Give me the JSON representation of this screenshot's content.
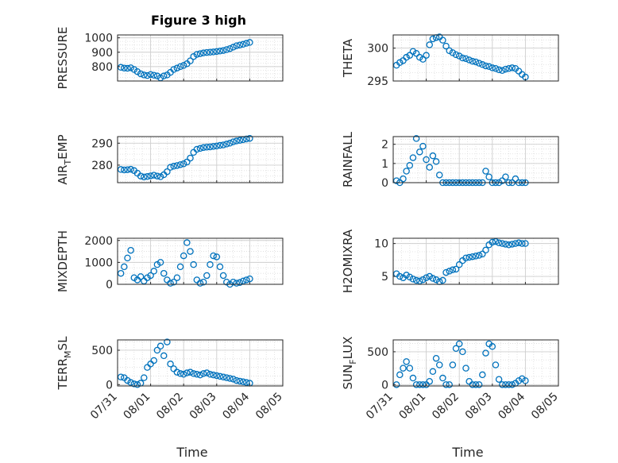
{
  "figure": {
    "title": "Figure 3 high",
    "marker_color": "#0072bd",
    "axis_color": "#262626",
    "grid_color": "#dcdcdc"
  },
  "chart_data": [
    {
      "type": "scatter",
      "id": "pressure",
      "ylabel_parts": [
        "PRESSURE"
      ],
      "ylim": [
        700,
        1020
      ],
      "yticks": [
        800,
        900,
        1000
      ],
      "ytick_labels": [
        "800",
        "900",
        "1000"
      ],
      "xlim": [
        "07/31",
        "08/05"
      ],
      "xticks": [],
      "xtick_labels": [],
      "x_days": [
        0.1,
        0.2,
        0.3,
        0.4,
        0.5,
        0.6,
        0.7,
        0.8,
        0.9,
        1.0,
        1.1,
        1.2,
        1.3,
        1.4,
        1.5,
        1.6,
        1.7,
        1.8,
        1.9,
        2.0,
        2.1,
        2.2,
        2.3,
        2.4,
        2.5,
        2.6,
        2.7,
        2.8,
        2.9,
        3.0,
        3.1,
        3.2,
        3.3,
        3.4,
        3.5,
        3.6,
        3.7,
        3.8,
        3.9,
        4.0
      ],
      "values": [
        795,
        790,
        788,
        792,
        780,
        765,
        750,
        742,
        738,
        745,
        740,
        735,
        722,
        735,
        742,
        760,
        780,
        790,
        800,
        808,
        820,
        840,
        870,
        885,
        890,
        895,
        898,
        900,
        902,
        905,
        908,
        912,
        918,
        925,
        935,
        945,
        950,
        955,
        962,
        968
      ]
    },
    {
      "type": "scatter",
      "id": "theta",
      "ylabel_parts": [
        "THETA"
      ],
      "ylim": [
        295,
        302
      ],
      "yticks": [
        295,
        300
      ],
      "ytick_labels": [
        "295",
        "300"
      ],
      "xlim": [
        "07/31",
        "08/05"
      ],
      "xticks": [],
      "xtick_labels": [],
      "x_days": [
        0.1,
        0.2,
        0.3,
        0.4,
        0.5,
        0.6,
        0.7,
        0.8,
        0.9,
        1.0,
        1.1,
        1.2,
        1.3,
        1.4,
        1.5,
        1.6,
        1.7,
        1.8,
        1.9,
        2.0,
        2.1,
        2.2,
        2.3,
        2.4,
        2.5,
        2.6,
        2.7,
        2.8,
        2.9,
        3.0,
        3.1,
        3.2,
        3.3,
        3.4,
        3.5,
        3.6,
        3.7,
        3.8,
        3.9,
        4.0
      ],
      "values": [
        297.4,
        297.8,
        298.1,
        298.6,
        298.9,
        299.5,
        299.2,
        298.6,
        298.3,
        298.9,
        300.5,
        301.4,
        301.6,
        301.7,
        301.2,
        300.3,
        299.6,
        299.3,
        299.0,
        298.8,
        298.5,
        298.4,
        298.2,
        298.0,
        297.9,
        297.7,
        297.5,
        297.3,
        297.2,
        297.0,
        296.9,
        296.7,
        296.6,
        296.8,
        296.9,
        297.0,
        296.9,
        296.5,
        296.0,
        295.6
      ]
    },
    {
      "type": "scatter",
      "id": "air-temp",
      "ylabel_parts": [
        "AIR",
        "T",
        "EMP"
      ],
      "ylim": [
        272,
        293
      ],
      "yticks": [
        280,
        290
      ],
      "ytick_labels": [
        "280",
        "290"
      ],
      "xlim": [
        "07/31",
        "08/05"
      ],
      "xticks": [],
      "xtick_labels": [],
      "x_days": [
        0.1,
        0.2,
        0.3,
        0.4,
        0.5,
        0.6,
        0.7,
        0.8,
        0.9,
        1.0,
        1.1,
        1.2,
        1.3,
        1.4,
        1.5,
        1.6,
        1.7,
        1.8,
        1.9,
        2.0,
        2.1,
        2.2,
        2.3,
        2.4,
        2.5,
        2.6,
        2.7,
        2.8,
        2.9,
        3.0,
        3.1,
        3.2,
        3.3,
        3.4,
        3.5,
        3.6,
        3.7,
        3.8,
        3.9,
        4.0
      ],
      "values": [
        278.0,
        277.8,
        277.9,
        278.1,
        277.5,
        276.3,
        275.0,
        274.6,
        274.8,
        275.1,
        275.4,
        275.0,
        274.7,
        275.6,
        277.0,
        279.0,
        279.5,
        279.8,
        280.2,
        280.6,
        281.4,
        283.2,
        285.8,
        287.2,
        287.6,
        288.0,
        288.2,
        288.3,
        288.5,
        288.7,
        289.0,
        289.2,
        289.6,
        290.0,
        290.6,
        291.0,
        291.3,
        291.6,
        291.9,
        292.2
      ]
    },
    {
      "type": "scatter",
      "id": "rainfall",
      "ylabel_parts": [
        "RAINFALL"
      ],
      "ylim": [
        0,
        2.4
      ],
      "yticks": [
        0,
        1,
        2
      ],
      "ytick_labels": [
        "0",
        "1",
        "2"
      ],
      "xlim": [
        "07/31",
        "08/05"
      ],
      "xticks": [],
      "xtick_labels": [],
      "x_days": [
        0.1,
        0.2,
        0.3,
        0.4,
        0.5,
        0.6,
        0.7,
        0.8,
        0.9,
        1.0,
        1.1,
        1.2,
        1.3,
        1.4,
        1.5,
        1.6,
        1.7,
        1.8,
        1.9,
        2.0,
        2.1,
        2.2,
        2.3,
        2.4,
        2.5,
        2.6,
        2.7,
        2.8,
        2.9,
        3.0,
        3.1,
        3.2,
        3.3,
        3.4,
        3.5,
        3.6,
        3.7,
        3.8,
        3.9,
        4.0
      ],
      "values": [
        0.1,
        0.0,
        0.2,
        0.6,
        0.9,
        1.3,
        2.3,
        1.6,
        1.9,
        1.2,
        0.8,
        1.4,
        1.1,
        0.4,
        0.0,
        0.0,
        0.0,
        0.0,
        0.0,
        0.0,
        0.0,
        0.0,
        0.0,
        0.0,
        0.0,
        0.0,
        0.0,
        0.6,
        0.3,
        0.0,
        0.0,
        0.0,
        0.1,
        0.3,
        0.0,
        0.0,
        0.2,
        0.0,
        0.0,
        0.0
      ]
    },
    {
      "type": "scatter",
      "id": "mixdepth",
      "ylabel_parts": [
        "MIXDEPTH"
      ],
      "ylim": [
        0,
        2100
      ],
      "yticks": [
        0,
        1000,
        2000
      ],
      "ytick_labels": [
        "0",
        "1000",
        "2000"
      ],
      "xlim": [
        "07/31",
        "08/05"
      ],
      "xticks": [],
      "xtick_labels": [],
      "x_days": [
        0.1,
        0.2,
        0.3,
        0.4,
        0.5,
        0.6,
        0.7,
        0.8,
        0.9,
        1.0,
        1.1,
        1.2,
        1.3,
        1.4,
        1.5,
        1.6,
        1.7,
        1.8,
        1.9,
        2.0,
        2.1,
        2.2,
        2.3,
        2.4,
        2.5,
        2.6,
        2.7,
        2.8,
        2.9,
        3.0,
        3.1,
        3.2,
        3.3,
        3.4,
        3.5,
        3.6,
        3.7,
        3.8,
        3.9,
        4.0
      ],
      "values": [
        500,
        800,
        1200,
        1550,
        300,
        200,
        350,
        150,
        300,
        400,
        600,
        900,
        1000,
        500,
        200,
        50,
        100,
        300,
        800,
        1300,
        1900,
        1500,
        900,
        200,
        50,
        100,
        400,
        900,
        1300,
        1250,
        800,
        400,
        100,
        0,
        100,
        50,
        80,
        150,
        200,
        250
      ]
    },
    {
      "type": "scatter",
      "id": "h2omixra",
      "ylabel_parts": [
        "H2OMIXRA"
      ],
      "ylim": [
        3.8,
        10.8
      ],
      "yticks": [
        5,
        10
      ],
      "ytick_labels": [
        "5",
        "10"
      ],
      "xlim": [
        "07/31",
        "08/05"
      ],
      "xticks": [],
      "xtick_labels": [],
      "x_days": [
        0.1,
        0.2,
        0.3,
        0.4,
        0.5,
        0.6,
        0.7,
        0.8,
        0.9,
        1.0,
        1.1,
        1.2,
        1.3,
        1.4,
        1.5,
        1.6,
        1.7,
        1.8,
        1.9,
        2.0,
        2.1,
        2.2,
        2.3,
        2.4,
        2.5,
        2.6,
        2.7,
        2.8,
        2.9,
        3.0,
        3.1,
        3.2,
        3.3,
        3.4,
        3.5,
        3.6,
        3.7,
        3.8,
        3.9,
        4.0
      ],
      "values": [
        5.4,
        5.0,
        4.8,
        5.2,
        4.9,
        4.6,
        4.4,
        4.3,
        4.5,
        4.8,
        5.0,
        4.7,
        4.5,
        4.2,
        4.4,
        5.6,
        5.8,
        6.0,
        6.1,
        6.8,
        7.4,
        7.8,
        7.9,
        8.0,
        8.1,
        8.2,
        8.4,
        9.0,
        9.8,
        10.2,
        10.3,
        10.1,
        10.0,
        9.9,
        9.8,
        9.9,
        10.0,
        10.1,
        10.0,
        10.0
      ]
    },
    {
      "type": "scatter",
      "id": "terr-msl",
      "ylabel_parts": [
        "TERR",
        "M",
        "SL"
      ],
      "ylim": [
        -20,
        650
      ],
      "yticks": [
        0,
        500
      ],
      "ytick_labels": [
        "0",
        "500"
      ],
      "xlim": [
        "07/31",
        "08/05"
      ],
      "xticks": [
        "07/31",
        "08/01",
        "08/02",
        "08/03",
        "08/04",
        "08/05"
      ],
      "xtick_labels": [
        "07/31",
        "08/01",
        "08/02",
        "08/03",
        "08/04",
        "08/05"
      ],
      "xlabel": "Time",
      "x_days": [
        0.1,
        0.2,
        0.3,
        0.4,
        0.5,
        0.6,
        0.7,
        0.8,
        0.9,
        1.0,
        1.1,
        1.2,
        1.3,
        1.4,
        1.5,
        1.6,
        1.7,
        1.8,
        1.9,
        2.0,
        2.1,
        2.2,
        2.3,
        2.4,
        2.5,
        2.6,
        2.7,
        2.8,
        2.9,
        3.0,
        3.1,
        3.2,
        3.3,
        3.4,
        3.5,
        3.6,
        3.7,
        3.8,
        3.9,
        4.0
      ],
      "values": [
        110,
        100,
        60,
        30,
        10,
        0,
        20,
        100,
        250,
        300,
        350,
        500,
        560,
        420,
        620,
        300,
        230,
        180,
        160,
        150,
        170,
        180,
        160,
        150,
        140,
        160,
        170,
        150,
        140,
        130,
        120,
        110,
        100,
        90,
        80,
        60,
        50,
        40,
        30,
        20
      ]
    },
    {
      "type": "scatter",
      "id": "sun-flux",
      "ylabel_parts": [
        "SUN",
        "F",
        "LUX"
      ],
      "ylim": [
        -20,
        680
      ],
      "yticks": [
        0,
        500
      ],
      "ytick_labels": [
        "0",
        "500"
      ],
      "xlim": [
        "07/31",
        "08/05"
      ],
      "xticks": [
        "07/31",
        "08/01",
        "08/02",
        "08/03",
        "08/04",
        "08/05"
      ],
      "xtick_labels": [
        "07/31",
        "08/01",
        "08/02",
        "08/03",
        "08/04",
        "08/05"
      ],
      "xlabel": "Time",
      "x_days": [
        0.1,
        0.2,
        0.3,
        0.4,
        0.5,
        0.6,
        0.7,
        0.8,
        0.9,
        1.0,
        1.1,
        1.2,
        1.3,
        1.4,
        1.5,
        1.6,
        1.7,
        1.8,
        1.9,
        2.0,
        2.1,
        2.2,
        2.3,
        2.4,
        2.5,
        2.6,
        2.7,
        2.8,
        2.9,
        3.0,
        3.1,
        3.2,
        3.3,
        3.4,
        3.5,
        3.6,
        3.7,
        3.8,
        3.9,
        4.0
      ],
      "values": [
        0,
        150,
        250,
        350,
        250,
        100,
        0,
        0,
        0,
        0,
        50,
        200,
        400,
        300,
        100,
        0,
        0,
        300,
        550,
        620,
        500,
        250,
        50,
        0,
        0,
        0,
        150,
        480,
        620,
        580,
        300,
        80,
        0,
        0,
        0,
        0,
        20,
        60,
        90,
        60
      ]
    }
  ]
}
